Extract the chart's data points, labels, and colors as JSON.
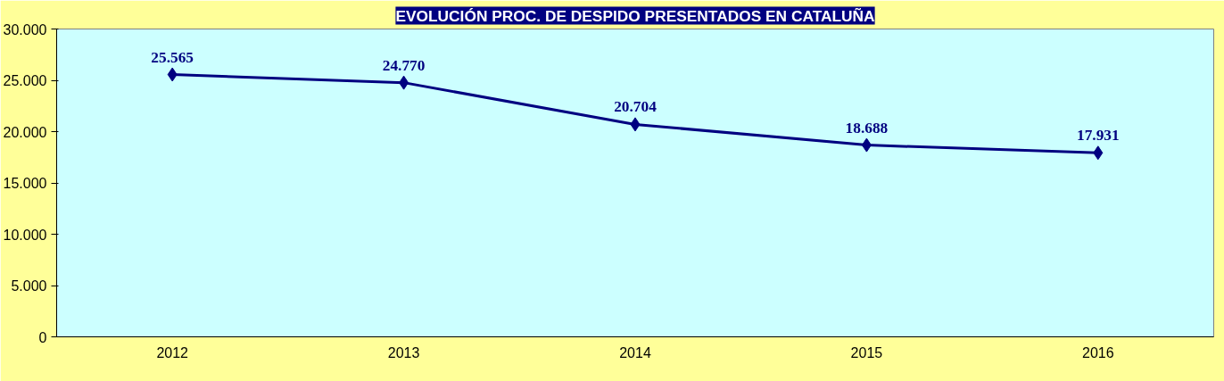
{
  "chart_data": {
    "type": "line",
    "title": "EVOLUCIÓN PROC. DE DESPIDO PRESENTADOS EN CATALUÑA",
    "categories": [
      "2012",
      "2013",
      "2014",
      "2015",
      "2016"
    ],
    "values": [
      25565,
      24770,
      20704,
      18688,
      17931
    ],
    "value_labels": [
      "25.565",
      "24.770",
      "20.704",
      "18.688",
      "17.931"
    ],
    "color": "#000080",
    "marker": "diamond",
    "grid": false,
    "ylim": [
      0,
      30000
    ],
    "yticks": [
      {
        "value": 0,
        "label": "0"
      },
      {
        "value": 5000,
        "label": "5.000"
      },
      {
        "value": 10000,
        "label": "10.000"
      },
      {
        "value": 15000,
        "label": "15.000"
      },
      {
        "value": 20000,
        "label": "20.000"
      },
      {
        "value": 25000,
        "label": "25.000"
      },
      {
        "value": 30000,
        "label": "30.000"
      }
    ]
  }
}
